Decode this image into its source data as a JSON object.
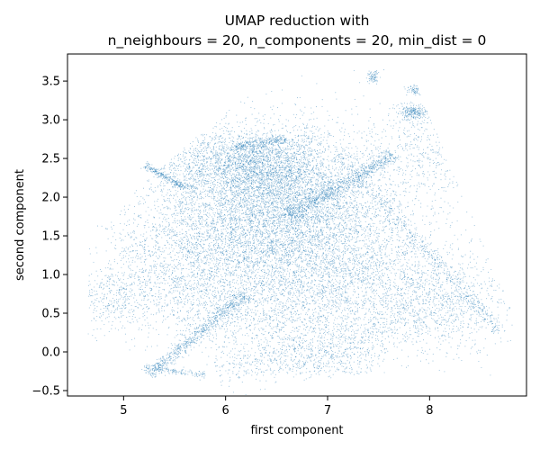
{
  "chart_data": {
    "type": "scatter",
    "title_line1": "UMAP reduction with",
    "title_line2": "n_neighbours = 20, n_components = 20, min_dist = 0",
    "xlabel": "first component",
    "ylabel": "second component",
    "xlim": [
      4.45,
      8.95
    ],
    "ylim": [
      -0.57,
      3.85
    ],
    "x_ticks": [
      5,
      6,
      7,
      8
    ],
    "y_ticks": [
      -0.5,
      0.0,
      0.5,
      1.0,
      1.5,
      2.0,
      2.5,
      3.0,
      3.5
    ],
    "x_tick_labels": [
      "5",
      "6",
      "7",
      "8"
    ],
    "y_tick_labels": [
      "−0.5",
      "0.0",
      "0.5",
      "1.0",
      "1.5",
      "2.0",
      "2.5",
      "3.0",
      "3.5"
    ],
    "grid": false,
    "marker_color": "#1f77b4",
    "point_count_note": "dense point cloud",
    "clusters": [
      {
        "cx": 6.35,
        "cy": 1.75,
        "sx": 0.55,
        "sy": 0.55,
        "n": 5200
      },
      {
        "cx": 6.3,
        "cy": 2.4,
        "sx": 0.35,
        "sy": 0.22,
        "n": 1800
      },
      {
        "cx": 6.9,
        "cy": 1.9,
        "sx": 0.45,
        "sy": 0.5,
        "n": 1800
      },
      {
        "cx": 7.4,
        "cy": 1.0,
        "sx": 0.55,
        "sy": 0.45,
        "n": 1800
      },
      {
        "cx": 5.6,
        "cy": 1.0,
        "sx": 0.45,
        "sy": 0.4,
        "n": 1400
      },
      {
        "cx": 6.6,
        "cy": 0.5,
        "sx": 0.6,
        "sy": 0.35,
        "n": 1200
      },
      {
        "cx": 8.2,
        "cy": 0.6,
        "sx": 0.3,
        "sy": 0.3,
        "n": 700
      },
      {
        "cx": 5.6,
        "cy": 2.5,
        "sx": 0.35,
        "sy": 0.3,
        "n": 600
      },
      {
        "cx": 8.0,
        "cy": 2.6,
        "sx": 0.3,
        "sy": 0.3,
        "n": 500
      },
      {
        "cx": 4.9,
        "cy": 0.7,
        "sx": 0.18,
        "sy": 0.2,
        "n": 300
      },
      {
        "cx": 7.85,
        "cy": 3.1,
        "sx": 0.08,
        "sy": 0.05,
        "n": 250
      },
      {
        "cx": 7.45,
        "cy": 3.55,
        "sx": 0.03,
        "sy": 0.04,
        "n": 80
      },
      {
        "cx": 7.85,
        "cy": 3.38,
        "sx": 0.04,
        "sy": 0.03,
        "n": 70
      },
      {
        "cx": 6.9,
        "cy": -0.1,
        "sx": 0.35,
        "sy": 0.15,
        "n": 400
      }
    ],
    "streaks": [
      {
        "x0": 5.25,
        "y0": -0.3,
        "x1": 6.2,
        "y1": 0.75,
        "w": 0.04,
        "n": 700
      },
      {
        "x0": 6.6,
        "y0": 1.75,
        "x1": 7.65,
        "y1": 2.55,
        "w": 0.05,
        "n": 800
      },
      {
        "x0": 5.2,
        "y0": 2.42,
        "x1": 5.6,
        "y1": 2.12,
        "w": 0.02,
        "n": 250
      },
      {
        "x0": 7.1,
        "y0": 2.55,
        "x1": 8.7,
        "y1": 0.25,
        "w": 0.04,
        "n": 500
      },
      {
        "x0": 5.2,
        "y0": -0.2,
        "x1": 5.8,
        "y1": -0.3,
        "w": 0.02,
        "n": 150
      },
      {
        "x0": 6.1,
        "y0": 2.65,
        "x1": 6.6,
        "y1": 2.75,
        "w": 0.03,
        "n": 250
      },
      {
        "x0": 5.9,
        "y0": -0.25,
        "x1": 7.9,
        "y1": 0.4,
        "w": 0.15,
        "n": 500
      }
    ]
  }
}
